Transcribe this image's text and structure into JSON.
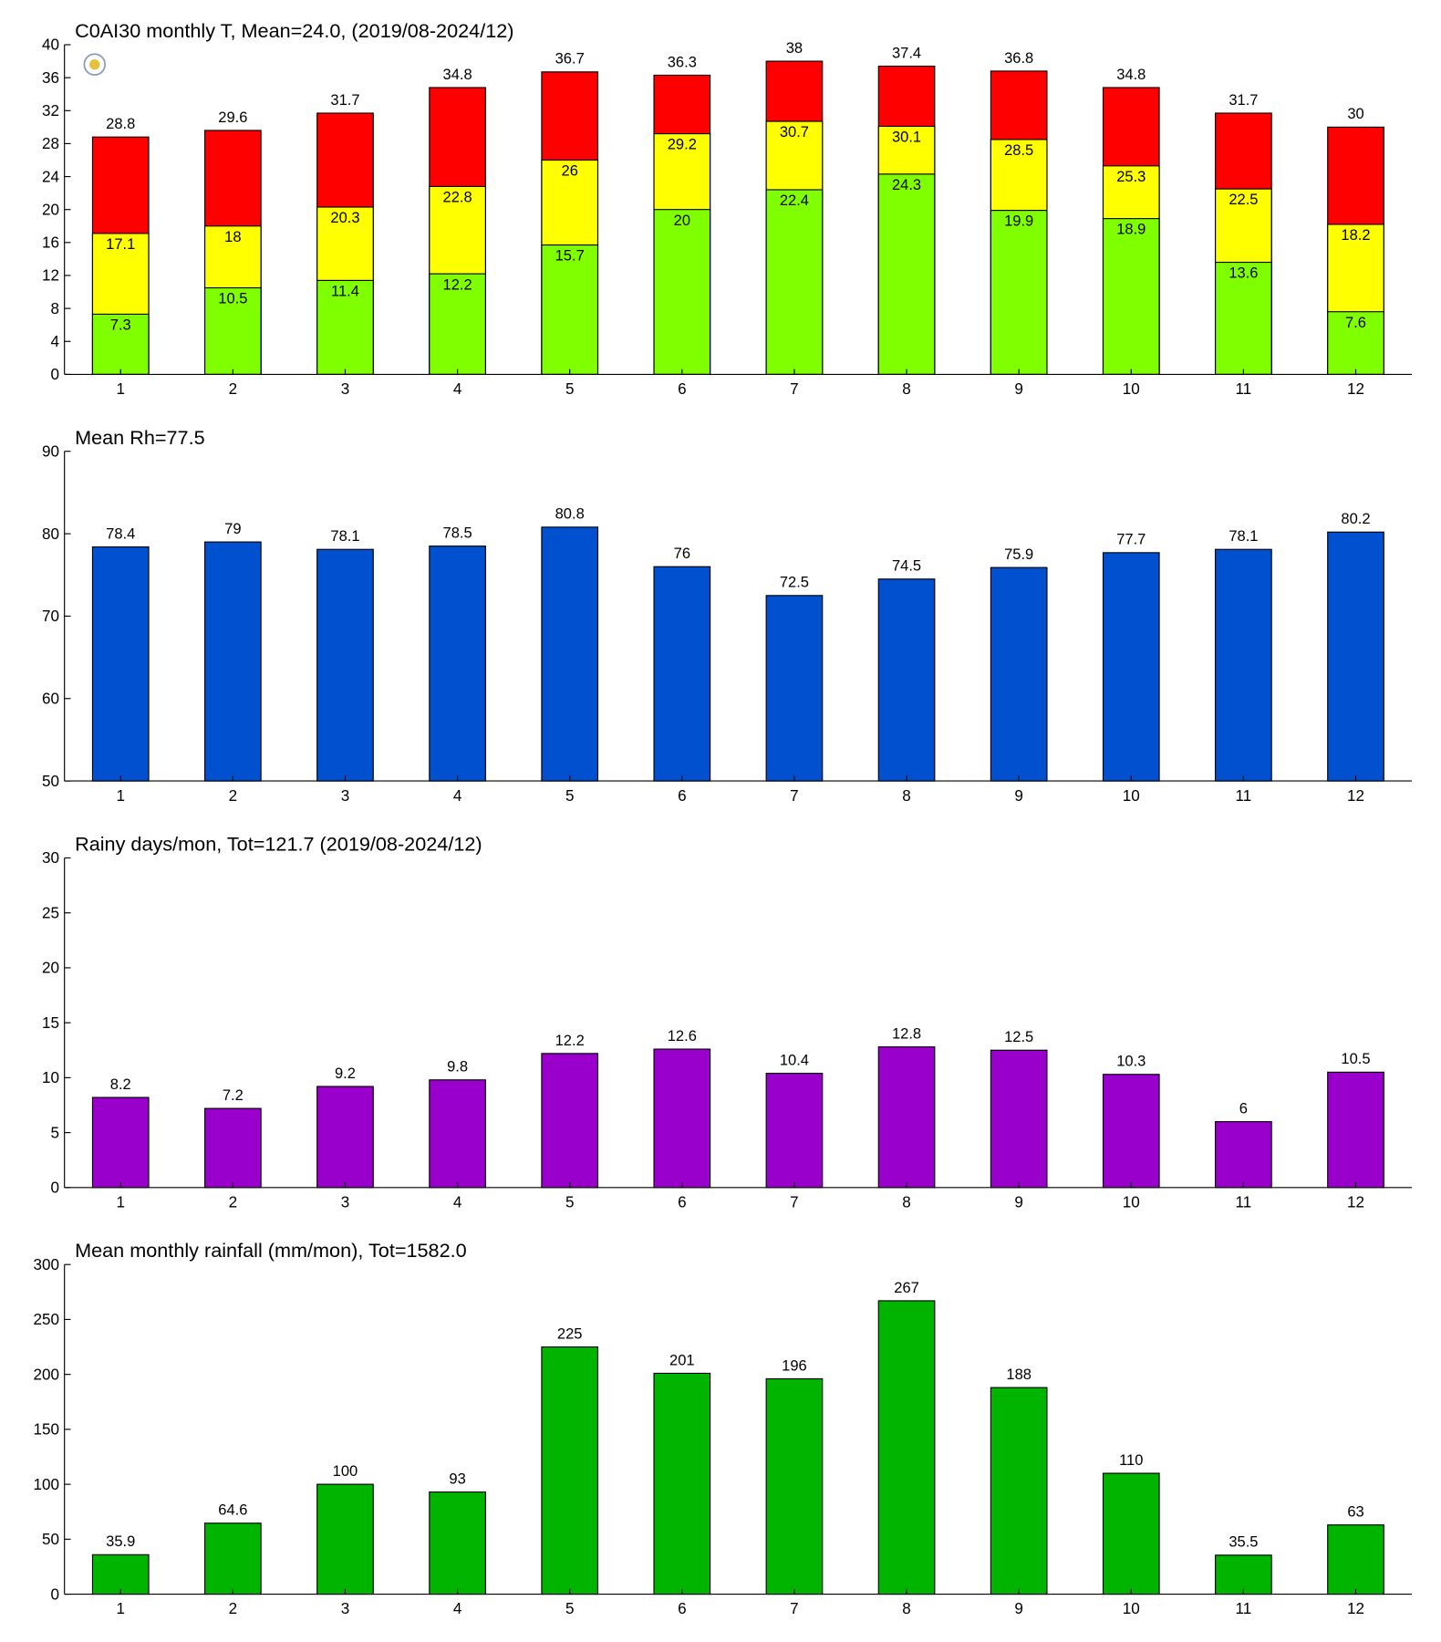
{
  "chart_data": [
    {
      "type": "bar",
      "title": "C0AI30 monthly T, Mean=24.0, (2019/08-2024/12)",
      "categories": [
        1,
        2,
        3,
        4,
        5,
        6,
        7,
        8,
        9,
        10,
        11,
        12
      ],
      "series": [
        {
          "color": "#ff0000",
          "values": [
            28.8,
            29.6,
            31.7,
            34.8,
            36.7,
            36.3,
            38,
            37.4,
            36.8,
            34.8,
            31.7,
            30
          ]
        },
        {
          "color": "#ffff00",
          "values": [
            17.1,
            18,
            20.3,
            22.8,
            26,
            29.2,
            30.7,
            30.1,
            28.5,
            25.3,
            22.5,
            18.2
          ]
        },
        {
          "color": "#80ff00",
          "values": [
            7.3,
            10.5,
            11.4,
            12.2,
            15.7,
            20,
            22.4,
            24.3,
            19.9,
            18.9,
            13.6,
            7.6
          ]
        }
      ],
      "ylim": [
        0,
        40
      ],
      "yticks": [
        0,
        4,
        8,
        12,
        16,
        20,
        24,
        28,
        32,
        36,
        40
      ]
    },
    {
      "type": "bar",
      "title": "Mean Rh=77.5",
      "categories": [
        1,
        2,
        3,
        4,
        5,
        6,
        7,
        8,
        9,
        10,
        11,
        12
      ],
      "series": [
        {
          "color": "#0050d0",
          "values": [
            78.4,
            79,
            78.1,
            78.5,
            80.8,
            76,
            72.5,
            74.5,
            75.9,
            77.7,
            78.1,
            80.2
          ]
        }
      ],
      "ylim": [
        50,
        90
      ],
      "yticks": [
        50,
        60,
        70,
        80,
        90
      ]
    },
    {
      "type": "bar",
      "title": "Rainy days/mon, Tot=121.7 (2019/08-2024/12)",
      "categories": [
        1,
        2,
        3,
        4,
        5,
        6,
        7,
        8,
        9,
        10,
        11,
        12
      ],
      "series": [
        {
          "color": "#9900cc",
          "values": [
            8.2,
            7.2,
            9.2,
            9.8,
            12.2,
            12.6,
            10.4,
            12.8,
            12.5,
            10.3,
            6,
            10.5
          ]
        }
      ],
      "ylim": [
        0,
        30
      ],
      "yticks": [
        0,
        5,
        10,
        15,
        20,
        25,
        30
      ]
    },
    {
      "type": "bar",
      "title": "Mean monthly rainfall (mm/mon), Tot=1582.0",
      "categories": [
        1,
        2,
        3,
        4,
        5,
        6,
        7,
        8,
        9,
        10,
        11,
        12
      ],
      "series": [
        {
          "color": "#00b400",
          "values": [
            35.9,
            64.6,
            100,
            93,
            225,
            201,
            196,
            267,
            188,
            110,
            35.5,
            63
          ]
        }
      ],
      "ylim": [
        0,
        300
      ],
      "yticks": [
        0,
        50,
        100,
        150,
        200,
        250,
        300
      ]
    }
  ]
}
